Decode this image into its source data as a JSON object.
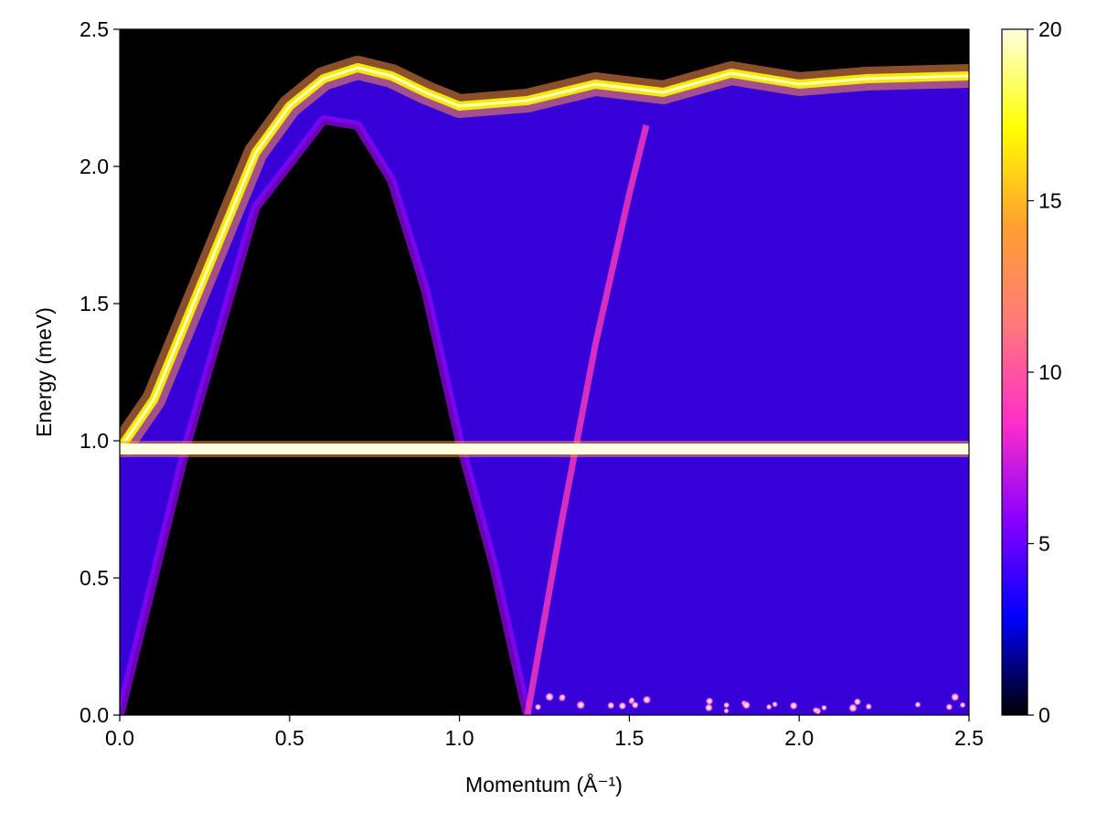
{
  "chart_data": {
    "type": "heatmap",
    "title": "",
    "xlabel": "Momentum (Å⁻¹)",
    "ylabel": "Energy (meV)",
    "xlim": [
      0.0,
      2.5
    ],
    "ylim": [
      0.0,
      2.5
    ],
    "x_ticks": [
      "0.0",
      "0.5",
      "1.0",
      "1.5",
      "2.0",
      "2.5"
    ],
    "y_ticks": [
      "0.0",
      "0.5",
      "1.0",
      "1.5",
      "2.0",
      "2.5"
    ],
    "grid": false,
    "colormap": "plasma-like (black-blue-purple-pink-orange-yellow-white)",
    "colorbar": {
      "range": [
        0,
        20
      ],
      "ticks": [
        "0",
        "5",
        "10",
        "15",
        "20"
      ],
      "stops": [
        "#000000",
        "#0000ff",
        "#8a00ff",
        "#ff2fc8",
        "#ff7a7a",
        "#ffa030",
        "#ffff00",
        "#ffffe0"
      ]
    },
    "features": {
      "flat_band": {
        "energy": 0.97,
        "x_range": [
          0.0,
          2.5
        ],
        "intensity": 20
      },
      "upper_dispersion": [
        [
          0.0,
          0.97
        ],
        [
          0.1,
          1.15
        ],
        [
          0.2,
          1.45
        ],
        [
          0.3,
          1.75
        ],
        [
          0.4,
          2.05
        ],
        [
          0.5,
          2.22
        ],
        [
          0.6,
          2.32
        ],
        [
          0.7,
          2.36
        ],
        [
          0.8,
          2.33
        ],
        [
          0.9,
          2.27
        ],
        [
          1.0,
          2.22
        ],
        [
          1.2,
          2.24
        ],
        [
          1.4,
          2.3
        ],
        [
          1.6,
          2.27
        ],
        [
          1.8,
          2.34
        ],
        [
          2.0,
          2.3
        ],
        [
          2.2,
          2.32
        ],
        [
          2.5,
          2.33
        ]
      ],
      "continuum_lower_edge": [
        [
          0.0,
          0.0
        ],
        [
          0.2,
          1.0
        ],
        [
          0.4,
          1.85
        ],
        [
          0.6,
          2.17
        ],
        [
          0.7,
          2.15
        ],
        [
          0.8,
          1.95
        ],
        [
          0.9,
          1.55
        ],
        [
          1.0,
          1.0
        ],
        [
          1.1,
          0.55
        ],
        [
          1.2,
          0.0
        ]
      ],
      "secondary_mode": [
        [
          1.2,
          0.0
        ],
        [
          1.3,
          0.7
        ],
        [
          1.4,
          1.35
        ],
        [
          1.5,
          1.9
        ],
        [
          1.55,
          2.15
        ]
      ]
    }
  }
}
